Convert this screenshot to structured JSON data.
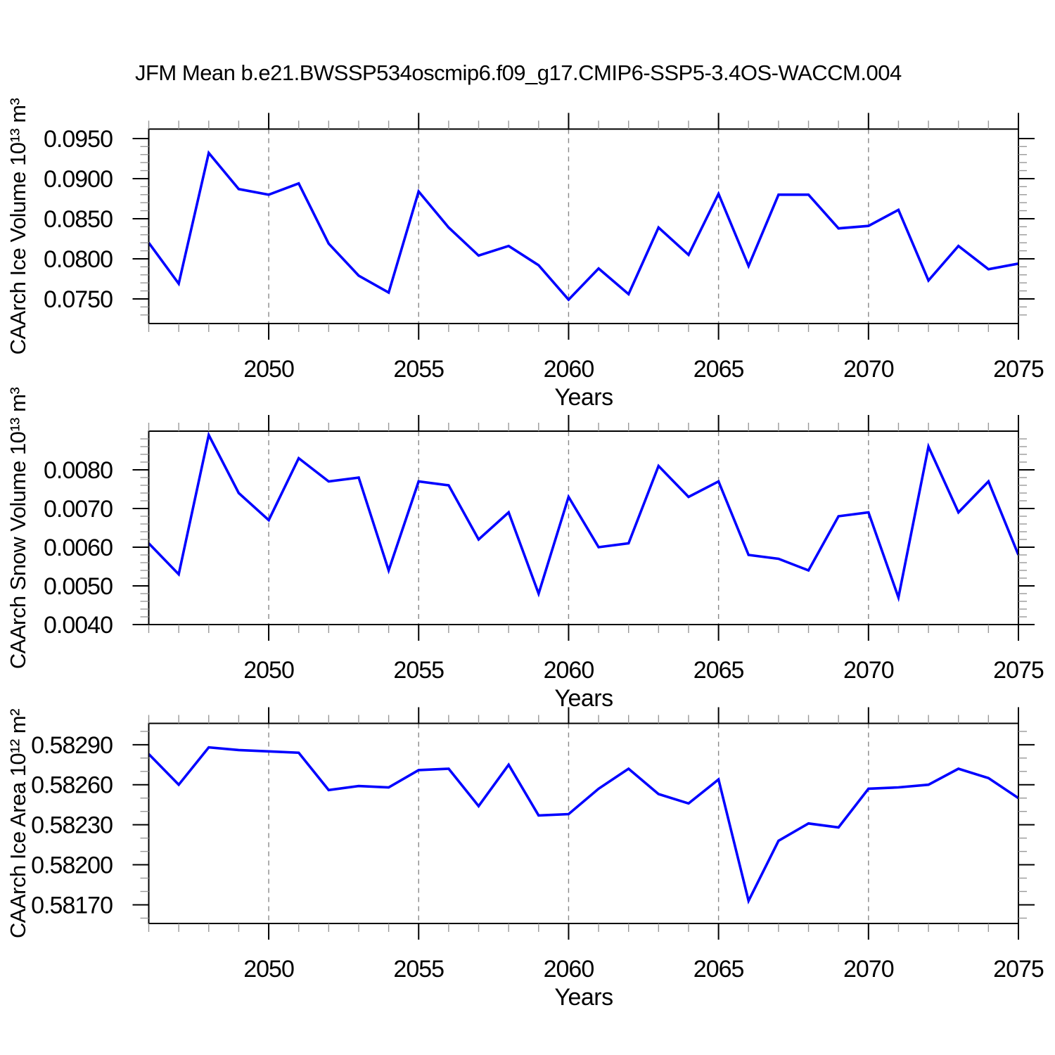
{
  "title": "JFM Mean b.e21.BWSSP534oscmip6.f09_g17.CMIP6-SSP5-3.4OS-WACCM.004",
  "styles": {
    "line_color": "#0000ff",
    "grid_color": "#888888",
    "axis_color": "#000000",
    "minor_tick_color": "#999999",
    "background": "#ffffff"
  },
  "chart_data": [
    {
      "type": "line",
      "panel": "ice-volume",
      "ylabel": "CAArch Ice Volume 10¹³ m³",
      "xlabel": "Years",
      "legend": "none",
      "grid": "vertical dashed at labeled x ticks",
      "x": [
        2046,
        2047,
        2048,
        2049,
        2050,
        2051,
        2052,
        2053,
        2054,
        2055,
        2056,
        2057,
        2058,
        2059,
        2060,
        2061,
        2062,
        2063,
        2064,
        2065,
        2066,
        2067,
        2068,
        2069,
        2070,
        2071,
        2072,
        2073,
        2074,
        2075
      ],
      "values": [
        0.082,
        0.0769,
        0.0932,
        0.0887,
        0.088,
        0.0894,
        0.0819,
        0.0779,
        0.0758,
        0.0884,
        0.0839,
        0.0804,
        0.0816,
        0.0792,
        0.0749,
        0.0788,
        0.0756,
        0.0839,
        0.0805,
        0.0881,
        0.0791,
        0.088,
        0.088,
        0.0838,
        0.0841,
        0.0861,
        0.0773,
        0.0816,
        0.0787,
        0.0794
      ],
      "xlim": [
        2046,
        2075
      ],
      "ylim": [
        0.07193,
        0.09618
      ],
      "xticks": {
        "values": [
          2050,
          2055,
          2060,
          2065,
          2070,
          2075
        ],
        "labels": [
          "2050",
          "2055",
          "2060",
          "2065",
          "2070",
          "2075"
        ]
      },
      "yticks": {
        "values": [
          0.095,
          0.09,
          0.085,
          0.08,
          0.075
        ],
        "labels": [
          "0.0950",
          "0.0900",
          "0.0850",
          "0.0800",
          "0.0750"
        ]
      },
      "xminor_step": 1,
      "yminor_step": 0.001
    },
    {
      "type": "line",
      "panel": "snow-volume",
      "ylabel": "CAArch Snow Volume 10¹³ m³",
      "xlabel": "Years",
      "legend": "none",
      "grid": "vertical dashed at labeled x ticks",
      "x": [
        2046,
        2047,
        2048,
        2049,
        2050,
        2051,
        2052,
        2053,
        2054,
        2055,
        2056,
        2057,
        2058,
        2059,
        2060,
        2061,
        2062,
        2063,
        2064,
        2065,
        2066,
        2067,
        2068,
        2069,
        2070,
        2071,
        2072,
        2073,
        2074,
        2075
      ],
      "values": [
        0.0061,
        0.0053,
        0.0089,
        0.0074,
        0.0067,
        0.0083,
        0.0077,
        0.0078,
        0.0054,
        0.0077,
        0.0076,
        0.0062,
        0.0069,
        0.0048,
        0.0073,
        0.006,
        0.0061,
        0.0081,
        0.0073,
        0.0077,
        0.0058,
        0.0057,
        0.0054,
        0.0068,
        0.0069,
        0.0047,
        0.0086,
        0.0069,
        0.0077,
        0.0058
      ],
      "xlim": [
        2046,
        2075
      ],
      "ylim": [
        0.004,
        0.009
      ],
      "xticks": {
        "values": [
          2050,
          2055,
          2060,
          2065,
          2070,
          2075
        ],
        "labels": [
          "2050",
          "2055",
          "2060",
          "2065",
          "2070",
          "2075"
        ]
      },
      "yticks": {
        "values": [
          0.008,
          0.007,
          0.006,
          0.005,
          0.004
        ],
        "labels": [
          "0.0080",
          "0.0070",
          "0.0060",
          "0.0050",
          "0.0040"
        ]
      },
      "xminor_step": 1,
      "yminor_step": 0.0002
    },
    {
      "type": "line",
      "panel": "ice-area",
      "ylabel": "CAArch Ice Area 10¹² m²",
      "xlabel": "Years",
      "legend": "none",
      "grid": "vertical dashed at labeled x ticks",
      "x": [
        2046,
        2047,
        2048,
        2049,
        2050,
        2051,
        2052,
        2053,
        2054,
        2055,
        2056,
        2057,
        2058,
        2059,
        2060,
        2061,
        2062,
        2063,
        2064,
        2065,
        2066,
        2067,
        2068,
        2069,
        2070,
        2071,
        2072,
        2073,
        2074,
        2075
      ],
      "values": [
        0.58283,
        0.5826,
        0.58288,
        0.58286,
        0.58285,
        0.58284,
        0.58256,
        0.58259,
        0.58258,
        0.58271,
        0.58272,
        0.58244,
        0.58275,
        0.58237,
        0.58238,
        0.58257,
        0.58272,
        0.58253,
        0.58246,
        0.58264,
        0.58173,
        0.58218,
        0.58231,
        0.58228,
        0.58257,
        0.58258,
        0.5826,
        0.58272,
        0.58265,
        0.5825
      ],
      "xlim": [
        2046,
        2075
      ],
      "ylim": [
        0.58156,
        0.58306
      ],
      "xticks": {
        "values": [
          2050,
          2055,
          2060,
          2065,
          2070,
          2075
        ],
        "labels": [
          "2050",
          "2055",
          "2060",
          "2065",
          "2070",
          "2075"
        ]
      },
      "yticks": {
        "values": [
          0.5829,
          0.5826,
          0.5823,
          0.582,
          0.5817
        ],
        "labels": [
          "0.58290",
          "0.58260",
          "0.58230",
          "0.58200",
          "0.58170"
        ]
      },
      "xminor_step": 1,
      "yminor_step": 0.0001
    }
  ]
}
